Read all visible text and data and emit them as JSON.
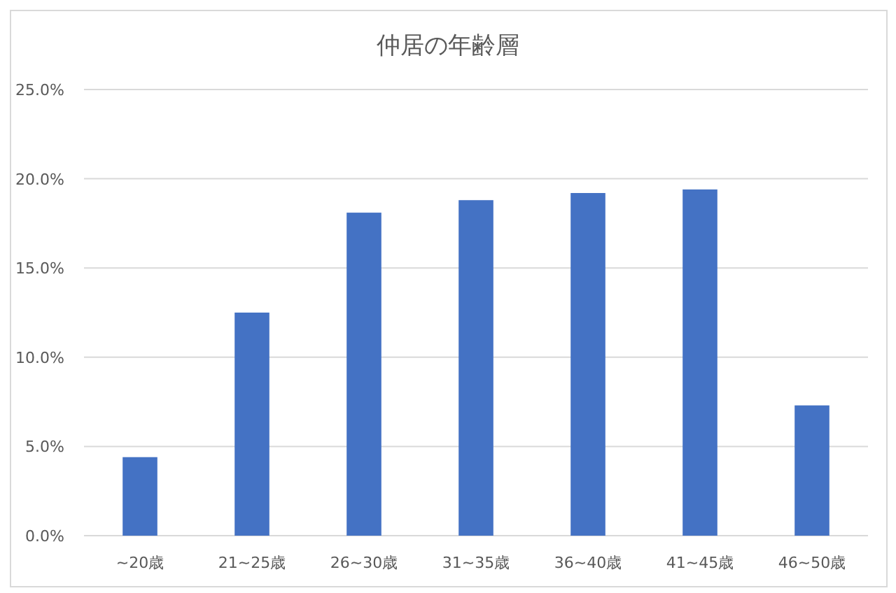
{
  "chart_data": {
    "type": "bar",
    "title": "仲居の年齢層",
    "categories": [
      "~20歳",
      "21~25歳",
      "26~30歳",
      "31~35歳",
      "36~40歳",
      "41~45歳",
      "46~50歳"
    ],
    "values": [
      4.4,
      12.5,
      18.1,
      18.8,
      19.2,
      19.4,
      7.3
    ],
    "color": "#4472c4",
    "ylim": [
      0,
      25
    ],
    "yticks": [
      {
        "value": 0,
        "label": "0.0%"
      },
      {
        "value": 5,
        "label": "5.0%"
      },
      {
        "value": 10,
        "label": "10.0%"
      },
      {
        "value": 15,
        "label": "15.0%"
      },
      {
        "value": 20,
        "label": "20.0%"
      },
      {
        "value": 25,
        "label": "25.0%"
      }
    ],
    "grid": "y"
  }
}
